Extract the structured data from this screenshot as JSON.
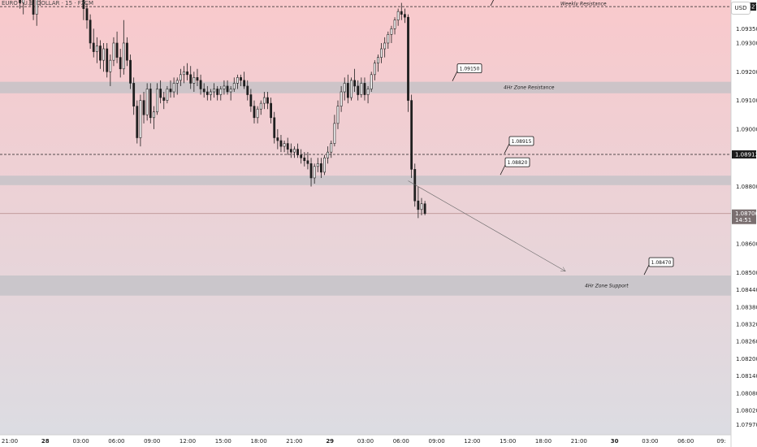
{
  "symbol_title": "EURO / U.S. DOLLAR · 15 · FXCM",
  "currency_button": "USD",
  "colors": {
    "bg_top": "#f9c9cc",
    "bg_bottom": "#dcdce2",
    "candle": "#1f1f1f",
    "zone": "#c0c0c6",
    "dashed": "#222222",
    "current_line": "#b48888",
    "arrow": "#666666"
  },
  "chart_data": {
    "type": "candlestick",
    "price_axis": {
      "range": [
        1.07935,
        1.0945
      ],
      "ticks": [
        "1.09350",
        "1.09300",
        "1.09200",
        "1.09100",
        "1.09000",
        "1.08800",
        "1.08600",
        "1.08500",
        "1.08440",
        "1.08380",
        "1.08320",
        "1.08260",
        "1.08200",
        "1.08140",
        "1.08080",
        "1.08020",
        "1.07970"
      ],
      "labels": [
        {
          "text": "1.09427",
          "value": 1.09427,
          "style": "dark"
        },
        {
          "text": "1.08912",
          "value": 1.08912,
          "style": "dark"
        },
        {
          "text": "1.08706",
          "sub": "14:51",
          "value": 1.08706,
          "style": "current"
        }
      ]
    },
    "time_axis": {
      "labels": [
        "21:00",
        "28",
        "03:00",
        "06:00",
        "09:00",
        "12:00",
        "15:00",
        "18:00",
        "21:00",
        "29",
        "03:00",
        "06:00",
        "09:00",
        "12:00",
        "15:00",
        "18:00",
        "21:00",
        "30",
        "03:00",
        "06:00",
        "09:"
      ]
    },
    "levels": [
      {
        "kind": "dashed",
        "value": 1.09427,
        "label": "Weekly Resistance",
        "callout": "1.09430"
      },
      {
        "kind": "zone",
        "value_high": 1.09165,
        "value_low": 1.09125,
        "label": "4Hr Zone Resistance",
        "callout": "1.09150"
      },
      {
        "kind": "dashed",
        "value": 1.08912,
        "label": "",
        "callout": "1.08915"
      },
      {
        "kind": "zone",
        "value_high": 1.08838,
        "value_low": 1.08805,
        "label": "",
        "callout": "1.08820"
      },
      {
        "kind": "zone",
        "value_high": 1.0849,
        "value_low": 1.0842,
        "label": "4Hr Zone Support",
        "callout": "1.08470"
      }
    ],
    "current_price": 1.08706,
    "projection": {
      "from_price": 1.0882,
      "to_price": 1.08505,
      "from_index": 121,
      "to_index": 168
    },
    "series": [
      {
        "values": [
          [
            1.095,
            1.0955,
            1.0947,
            1.0952
          ],
          [
            1.0952,
            1.0956,
            1.0948,
            1.095
          ],
          [
            1.095,
            1.0954,
            1.0946,
            1.0951
          ],
          [
            1.0951,
            1.0958,
            1.0949,
            1.0954
          ],
          [
            1.0954,
            1.0956,
            1.0947,
            1.0948
          ],
          [
            1.0948,
            1.0952,
            1.0942,
            1.0944
          ],
          [
            1.0944,
            1.0952,
            1.094,
            1.095
          ],
          [
            1.095,
            1.0956,
            1.0947,
            1.0953
          ],
          [
            1.0953,
            1.0955,
            1.0943,
            1.0945
          ],
          [
            1.0945,
            1.0947,
            1.0938,
            1.094
          ],
          [
            1.094,
            1.0948,
            1.0936,
            1.0946
          ],
          [
            1.0946,
            1.0953,
            1.0943,
            1.095
          ],
          [
            1.095,
            1.0954,
            1.0947,
            1.0952
          ],
          [
            1.0952,
            1.0956,
            1.0949,
            1.0951
          ],
          [
            1.0951,
            1.0955,
            1.0948,
            1.0953
          ],
          [
            1.0953,
            1.0957,
            1.095,
            1.0954
          ],
          [
            1.0954,
            1.0956,
            1.0949,
            1.0952
          ],
          [
            1.0952,
            1.0955,
            1.0948,
            1.0953
          ],
          [
            1.0953,
            1.0956,
            1.0949,
            1.0951
          ],
          [
            1.0951,
            1.0954,
            1.0947,
            1.095
          ],
          [
            1.095,
            1.0953,
            1.0946,
            1.0952
          ],
          [
            1.0952,
            1.0956,
            1.0949,
            1.0954
          ],
          [
            1.0954,
            1.0957,
            1.095,
            1.0953
          ],
          [
            1.0953,
            1.0956,
            1.0945,
            1.0947
          ],
          [
            1.0947,
            1.0951,
            1.0938,
            1.0942
          ],
          [
            1.0942,
            1.0944,
            1.0935,
            1.0938
          ],
          [
            1.0938,
            1.094,
            1.0928,
            1.093
          ],
          [
            1.093,
            1.0935,
            1.0925,
            1.0927
          ],
          [
            1.0927,
            1.0932,
            1.0923,
            1.0929
          ],
          [
            1.0929,
            1.0931,
            1.0921,
            1.0924
          ],
          [
            1.0924,
            1.093,
            1.092,
            1.0928
          ],
          [
            1.0928,
            1.093,
            1.0918,
            1.092
          ],
          [
            1.092,
            1.0926,
            1.0915,
            1.0924
          ],
          [
            1.0924,
            1.0932,
            1.0922,
            1.093
          ],
          [
            1.093,
            1.0934,
            1.0923,
            1.0925
          ],
          [
            1.0925,
            1.0928,
            1.0918,
            1.0921
          ],
          [
            1.0921,
            1.0938,
            1.0919,
            1.093
          ],
          [
            1.093,
            1.0932,
            1.0922,
            1.0924
          ],
          [
            1.0924,
            1.0926,
            1.0914,
            1.0916
          ],
          [
            1.0916,
            1.0918,
            1.0905,
            1.0908
          ],
          [
            1.0908,
            1.091,
            1.0895,
            1.0897
          ],
          [
            1.0897,
            1.0912,
            1.0894,
            1.091
          ],
          [
            1.091,
            1.0913,
            1.0902,
            1.0905
          ],
          [
            1.0905,
            1.0916,
            1.0903,
            1.0914
          ],
          [
            1.0914,
            1.0916,
            1.0902,
            1.0904
          ],
          [
            1.0904,
            1.0908,
            1.09,
            1.0906
          ],
          [
            1.0906,
            1.0916,
            1.0905,
            1.0914
          ],
          [
            1.0914,
            1.0917,
            1.0909,
            1.0911
          ],
          [
            1.0911,
            1.0913,
            1.0907,
            1.091
          ],
          [
            1.091,
            1.0915,
            1.0909,
            1.0914
          ],
          [
            1.0914,
            1.0917,
            1.0911,
            1.0913
          ],
          [
            1.0913,
            1.0918,
            1.0911,
            1.0916
          ],
          [
            1.0916,
            1.0918,
            1.0912,
            1.0917
          ],
          [
            1.0917,
            1.0921,
            1.0915,
            1.0919
          ],
          [
            1.0919,
            1.0922,
            1.0916,
            1.092
          ],
          [
            1.092,
            1.0923,
            1.0917,
            1.0919
          ],
          [
            1.0919,
            1.0922,
            1.0914,
            1.0916
          ],
          [
            1.0916,
            1.092,
            1.0913,
            1.0918
          ],
          [
            1.0918,
            1.0921,
            1.0915,
            1.0917
          ],
          [
            1.0917,
            1.0919,
            1.0912,
            1.0914
          ],
          [
            1.0914,
            1.0916,
            1.0911,
            1.0913
          ],
          [
            1.0913,
            1.0915,
            1.091,
            1.0912
          ],
          [
            1.0912,
            1.0914,
            1.091,
            1.0913
          ],
          [
            1.0913,
            1.0916,
            1.0911,
            1.0914
          ],
          [
            1.0914,
            1.0915,
            1.091,
            1.0912
          ],
          [
            1.0912,
            1.0915,
            1.091,
            1.0914
          ],
          [
            1.0914,
            1.0917,
            1.0912,
            1.0915
          ],
          [
            1.0915,
            1.0917,
            1.0912,
            1.0913
          ],
          [
            1.0913,
            1.0915,
            1.091,
            1.0914
          ],
          [
            1.0914,
            1.0918,
            1.0913,
            1.0916
          ],
          [
            1.0916,
            1.0919,
            1.0914,
            1.0918
          ],
          [
            1.0918,
            1.0919,
            1.0915,
            1.0917
          ],
          [
            1.0917,
            1.092,
            1.0914,
            1.0915
          ],
          [
            1.0915,
            1.0917,
            1.091,
            1.0912
          ],
          [
            1.0912,
            1.0914,
            1.0906,
            1.0908
          ],
          [
            1.0908,
            1.091,
            1.0902,
            1.0904
          ],
          [
            1.0904,
            1.0908,
            1.0902,
            1.0907
          ],
          [
            1.0907,
            1.091,
            1.0905,
            1.0909
          ],
          [
            1.0909,
            1.0913,
            1.0907,
            1.0911
          ],
          [
            1.0911,
            1.0913,
            1.0907,
            1.0909
          ],
          [
            1.0909,
            1.0911,
            1.0902,
            1.0904
          ],
          [
            1.0904,
            1.0906,
            1.0895,
            1.0897
          ],
          [
            1.0897,
            1.09,
            1.0893,
            1.0896
          ],
          [
            1.0896,
            1.0898,
            1.0892,
            1.0894
          ],
          [
            1.0894,
            1.0896,
            1.0892,
            1.0895
          ],
          [
            1.0895,
            1.0897,
            1.0891,
            1.0893
          ],
          [
            1.0893,
            1.0895,
            1.089,
            1.0892
          ],
          [
            1.0892,
            1.0894,
            1.089,
            1.0893
          ],
          [
            1.0893,
            1.0895,
            1.089,
            1.0891
          ],
          [
            1.0891,
            1.0893,
            1.0888,
            1.089
          ],
          [
            1.089,
            1.0892,
            1.0887,
            1.0889
          ],
          [
            1.0889,
            1.0892,
            1.0886,
            1.0888
          ],
          [
            1.0888,
            1.089,
            1.088,
            1.0883
          ],
          [
            1.0883,
            1.0888,
            1.0881,
            1.0887
          ],
          [
            1.0887,
            1.089,
            1.0885,
            1.0888
          ],
          [
            1.0888,
            1.089,
            1.0883,
            1.0885
          ],
          [
            1.0885,
            1.0891,
            1.0884,
            1.089
          ],
          [
            1.089,
            1.0894,
            1.0888,
            1.0892
          ],
          [
            1.0892,
            1.0896,
            1.089,
            1.0895
          ],
          [
            1.0895,
            1.0905,
            1.0894,
            1.0902
          ],
          [
            1.0902,
            1.091,
            1.09,
            1.0908
          ],
          [
            1.0908,
            1.0915,
            1.0906,
            1.0913
          ],
          [
            1.0913,
            1.0918,
            1.091,
            1.0916
          ],
          [
            1.0916,
            1.0919,
            1.0909,
            1.0911
          ],
          [
            1.0911,
            1.0918,
            1.091,
            1.0917
          ],
          [
            1.0917,
            1.0921,
            1.0913,
            1.0915
          ],
          [
            1.0915,
            1.0917,
            1.091,
            1.0912
          ],
          [
            1.0912,
            1.0918,
            1.0911,
            1.0916
          ],
          [
            1.0916,
            1.0918,
            1.091,
            1.0912
          ],
          [
            1.0912,
            1.0915,
            1.0909,
            1.0914
          ],
          [
            1.0914,
            1.092,
            1.0913,
            1.0919
          ],
          [
            1.0919,
            1.0924,
            1.0917,
            1.0923
          ],
          [
            1.0923,
            1.0926,
            1.092,
            1.0925
          ],
          [
            1.0925,
            1.093,
            1.0923,
            1.0928
          ],
          [
            1.0928,
            1.0932,
            1.0925,
            1.093
          ],
          [
            1.093,
            1.0934,
            1.0928,
            1.0933
          ],
          [
            1.0933,
            1.0936,
            1.093,
            1.0935
          ],
          [
            1.0935,
            1.0939,
            1.0933,
            1.0938
          ],
          [
            1.0938,
            1.0942,
            1.0936,
            1.0941
          ],
          [
            1.0941,
            1.0944,
            1.0938,
            1.094
          ],
          [
            1.094,
            1.0942,
            1.0937,
            1.0939
          ],
          [
            1.0939,
            1.094,
            1.0906,
            1.091
          ],
          [
            1.091,
            1.0912,
            1.0883,
            1.0886
          ],
          [
            1.0886,
            1.0888,
            1.0873,
            1.0875
          ],
          [
            1.0875,
            1.088,
            1.0869,
            1.0872
          ],
          [
            1.0872,
            1.0876,
            1.087,
            1.0874
          ],
          [
            1.0874,
            1.0875,
            1.087,
            1.08706
          ]
        ]
      }
    ]
  },
  "annotations": {
    "weekly_resistance": "Weekly Resistance",
    "zone_resistance": "4Hr Zone Resistance",
    "zone_support": "4Hr Zone Support",
    "callouts": [
      "1.09430",
      "1.09150",
      "1.08915",
      "1.08820",
      "1.08470"
    ]
  }
}
